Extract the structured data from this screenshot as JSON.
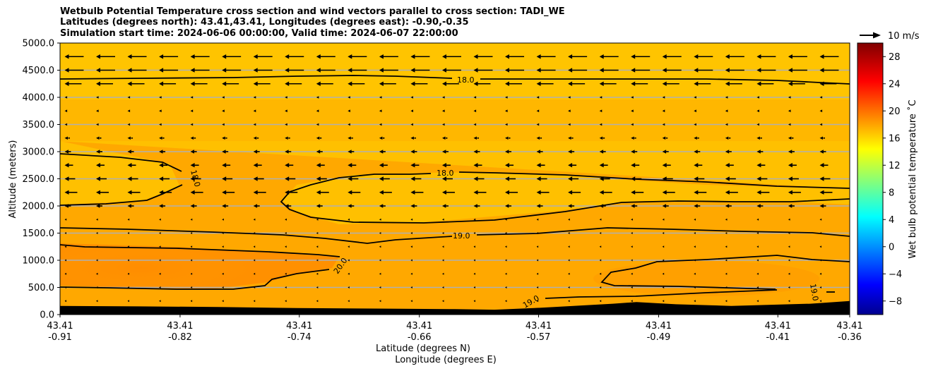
{
  "chart_data": {
    "type": "contourf",
    "title_lines": [
      "Wetbulb Potential Temperature cross section and wind vectors parallel to cross section: TADI_WE",
      "Latitudes (degrees north): 43.41,43.41, Longitudes (degrees east): -0.90,-0.35",
      "Simulation start time: 2024-06-06 00:00:00, Valid time: 2024-06-07 22:00:00"
    ],
    "ylabel": "Altitude (meters)",
    "xlabel_lat": "Latitude (degrees N)",
    "xlabel_lon": "Longitude (degrees E)",
    "ylim": [
      0,
      5000
    ],
    "yticks": [
      0,
      500,
      1000,
      1500,
      2000,
      2500,
      3000,
      3500,
      4000,
      4500,
      5000
    ],
    "ytick_labels": [
      "0.0",
      "500.0",
      "1000.0",
      "1500.0",
      "2000.0",
      "2500.0",
      "3000.0",
      "3500.0",
      "4000.0",
      "4500.0",
      "5000.0"
    ],
    "xticks": [
      {
        "pos": 0.0,
        "lat": "43.41",
        "lon": "-0.91"
      },
      {
        "pos": 0.152,
        "lat": "43.41",
        "lon": "-0.82"
      },
      {
        "pos": 0.303,
        "lat": "43.41",
        "lon": "-0.74"
      },
      {
        "pos": 0.455,
        "lat": "43.41",
        "lon": "-0.66"
      },
      {
        "pos": 0.606,
        "lat": "43.41",
        "lon": "-0.57"
      },
      {
        "pos": 0.758,
        "lat": "43.41",
        "lon": "-0.49"
      },
      {
        "pos": 0.909,
        "lat": "43.41",
        "lon": "-0.41"
      },
      {
        "pos": 1.0,
        "lat": "43.41",
        "lon": "-0.36"
      }
    ],
    "colorbar": {
      "label": "Wet bulb potential temperature ˚C",
      "range": [
        -10,
        30
      ],
      "ticks": [
        -8,
        -4,
        0,
        4,
        8,
        12,
        16,
        20,
        24,
        28
      ],
      "tick_labels": [
        "−8",
        "−4",
        "0",
        "4",
        "8",
        "12",
        "16",
        "20",
        "24",
        "28"
      ],
      "colormap": "jet"
    },
    "wind_key": {
      "label": "10 m/s",
      "speed": 10
    },
    "contour_labels": [
      "18.0",
      "18.0",
      "18.0",
      "19.0",
      "20.0",
      "19.0",
      "19.0"
    ],
    "terrain_altitude_m": [
      [
        0.0,
        160
      ],
      [
        0.1,
        150
      ],
      [
        0.2,
        140
      ],
      [
        0.3,
        120
      ],
      [
        0.4,
        110
      ],
      [
        0.5,
        100
      ],
      [
        0.55,
        90
      ],
      [
        0.6,
        120
      ],
      [
        0.65,
        160
      ],
      [
        0.7,
        200
      ],
      [
        0.73,
        230
      ],
      [
        0.78,
        190
      ],
      [
        0.85,
        160
      ],
      [
        0.9,
        180
      ],
      [
        0.95,
        200
      ],
      [
        1.0,
        250
      ]
    ],
    "wind_rows": [
      {
        "alt": 4750,
        "speed": 9
      },
      {
        "alt": 4500,
        "speed": 9
      },
      {
        "alt": 4250,
        "speed": 8
      },
      {
        "alt": 4000,
        "speed": 2
      },
      {
        "alt": 3750,
        "speed": 2
      },
      {
        "alt": 3500,
        "speed": 2
      },
      {
        "alt": 3250,
        "speed": 2.5
      },
      {
        "alt": 3000,
        "speed": 3
      },
      {
        "alt": 2750,
        "speed": 4
      },
      {
        "alt": 2500,
        "speed": 5
      },
      {
        "alt": 2250,
        "speed": 6
      },
      {
        "alt": 2000,
        "speed": 3
      },
      {
        "alt": 1750,
        "speed": 1.5
      },
      {
        "alt": 1500,
        "speed": 0.5
      },
      {
        "alt": 1250,
        "speed": 0.6
      },
      {
        "alt": 1000,
        "speed": 0.8
      },
      {
        "alt": 750,
        "speed": 1
      },
      {
        "alt": 500,
        "speed": 1
      },
      {
        "alt": 250,
        "speed": 0.6
      }
    ]
  }
}
